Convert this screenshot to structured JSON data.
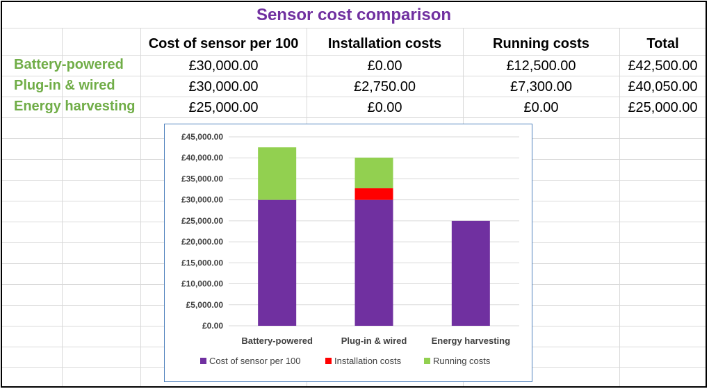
{
  "table": {
    "title": "Sensor cost comparison",
    "headers": [
      "Cost of sensor per 100",
      "Installation costs",
      "Running costs",
      "Total"
    ],
    "rows": [
      {
        "label": "Battery-powered",
        "cells": [
          "£30,000.00",
          "£0.00",
          "£12,500.00",
          "£42,500.00"
        ]
      },
      {
        "label": "Plug-in & wired",
        "cells": [
          "£30,000.00",
          "£2,750.00",
          "£7,300.00",
          "£40,050.00"
        ]
      },
      {
        "label": "Energy harvesting",
        "cells": [
          "£25,000.00",
          "£0.00",
          "£0.00",
          "£25,000.00"
        ]
      }
    ]
  },
  "chart_data": {
    "type": "bar",
    "stacked": true,
    "categories": [
      "Battery-powered",
      "Plug-in & wired",
      "Energy harvesting"
    ],
    "series": [
      {
        "name": "Cost of sensor per 100",
        "values": [
          30000,
          30000,
          25000
        ],
        "color": "#7030a0"
      },
      {
        "name": "Installation costs",
        "values": [
          0,
          2750,
          0
        ],
        "color": "#ff0000"
      },
      {
        "name": "Running costs",
        "values": [
          12500,
          7300,
          0
        ],
        "color": "#92d050"
      }
    ],
    "ylim": [
      0,
      45000
    ],
    "yticks": [
      "£0.00",
      "£5,000.00",
      "£10,000.00",
      "£15,000.00",
      "£20,000.00",
      "£25,000.00",
      "£30,000.00",
      "£35,000.00",
      "£40,000.00",
      "£45,000.00"
    ],
    "grid": true,
    "legend_position": "bottom"
  },
  "colors": {
    "title": "#7030a0",
    "row_label": "#70ad47",
    "chart_border": "#4f81bd",
    "gridline": "#d9d9d9"
  }
}
